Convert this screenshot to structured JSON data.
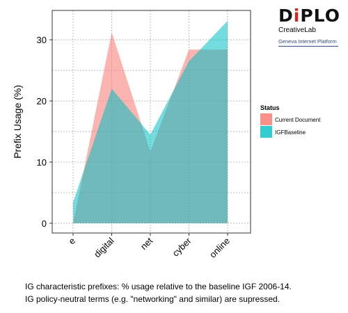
{
  "branding": {
    "logo_prefix": "D",
    "logo_accent": "i",
    "logo_suffix": "PLO",
    "subtitle": "CreativeLab",
    "platform": "Geneva Internet Platform"
  },
  "caption": {
    "line1": "IG characteristic prefixes: % usage relative to the baseline IGF 2006-14.",
    "line2": "IG policy-neutral terms (e.g. \"networking\" and similar) are supressed."
  },
  "chart_data": {
    "type": "area",
    "categories": [
      "e",
      "digital",
      "net",
      "cyber",
      "online"
    ],
    "series": [
      {
        "name": "Current Document",
        "values": [
          0,
          31.2,
          11.7,
          28.4,
          28.4
        ],
        "color": "#f8766d"
      },
      {
        "name": "IGFBaseline",
        "values": [
          3.4,
          22.0,
          14.5,
          26.5,
          33.1
        ],
        "color": "#00bfc4"
      }
    ],
    "ylabel": "Prefix Usage (%)",
    "xlabel": "",
    "ylim": [
      -1.6,
      34.8
    ],
    "yticks": [
      0,
      10,
      20,
      30
    ],
    "grid": true,
    "legend": {
      "title": "Status",
      "position": "right"
    }
  }
}
